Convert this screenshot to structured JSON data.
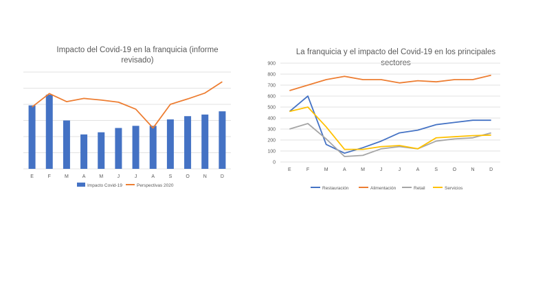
{
  "chart_data": [
    {
      "type": "bar+line",
      "title_lines": [
        "Impacto del Covid-19 en la franquicia (informe",
        "revisado)"
      ],
      "categories": [
        "E",
        "F",
        "M",
        "A",
        "M",
        "J",
        "J",
        "A",
        "S",
        "O",
        "N",
        "D"
      ],
      "series": [
        {
          "name": "Impacto Covid-19",
          "kind": "bar",
          "color": "#4472C4",
          "values": [
            590,
            690,
            450,
            320,
            340,
            380,
            400,
            400,
            460,
            490,
            505,
            535
          ]
        },
        {
          "name": "Perspectivas 2020",
          "kind": "line",
          "color": "#ED7D31",
          "values": [
            575,
            700,
            625,
            655,
            640,
            620,
            555,
            380,
            600,
            650,
            705,
            810
          ]
        }
      ],
      "ylim": [
        0,
        900
      ],
      "y_gridlines": [
        0,
        150,
        300,
        450,
        600,
        750,
        900
      ],
      "y_tick_labels_shown": false,
      "legend": "bottom"
    },
    {
      "type": "line",
      "title_lines": [
        "La franquicia y el impacto del Covid-19 en los principales",
        "sectores"
      ],
      "categories": [
        "E",
        "F",
        "M",
        "A",
        "M",
        "J",
        "J",
        "A",
        "S",
        "O",
        "N",
        "D"
      ],
      "series": [
        {
          "name": "Restauración",
          "color": "#4472C4",
          "values": [
            460,
            600,
            160,
            80,
            130,
            190,
            265,
            290,
            340,
            360,
            380,
            380
          ]
        },
        {
          "name": "Alimentación",
          "color": "#ED7D31",
          "values": [
            650,
            700,
            750,
            780,
            750,
            750,
            720,
            740,
            730,
            750,
            750,
            790
          ]
        },
        {
          "name": "Retail",
          "color": "#A5A5A5",
          "values": [
            300,
            350,
            210,
            50,
            60,
            120,
            140,
            120,
            190,
            210,
            220,
            265
          ]
        },
        {
          "name": "Servicios",
          "color": "#FFC000",
          "values": [
            460,
            500,
            320,
            115,
            115,
            140,
            150,
            120,
            220,
            230,
            240,
            245
          ]
        }
      ],
      "ylim": [
        0,
        900
      ],
      "yticks": [
        "0",
        "100",
        "200",
        "300",
        "400",
        "500",
        "600",
        "700",
        "800",
        "900"
      ],
      "legend": "bottom"
    }
  ]
}
